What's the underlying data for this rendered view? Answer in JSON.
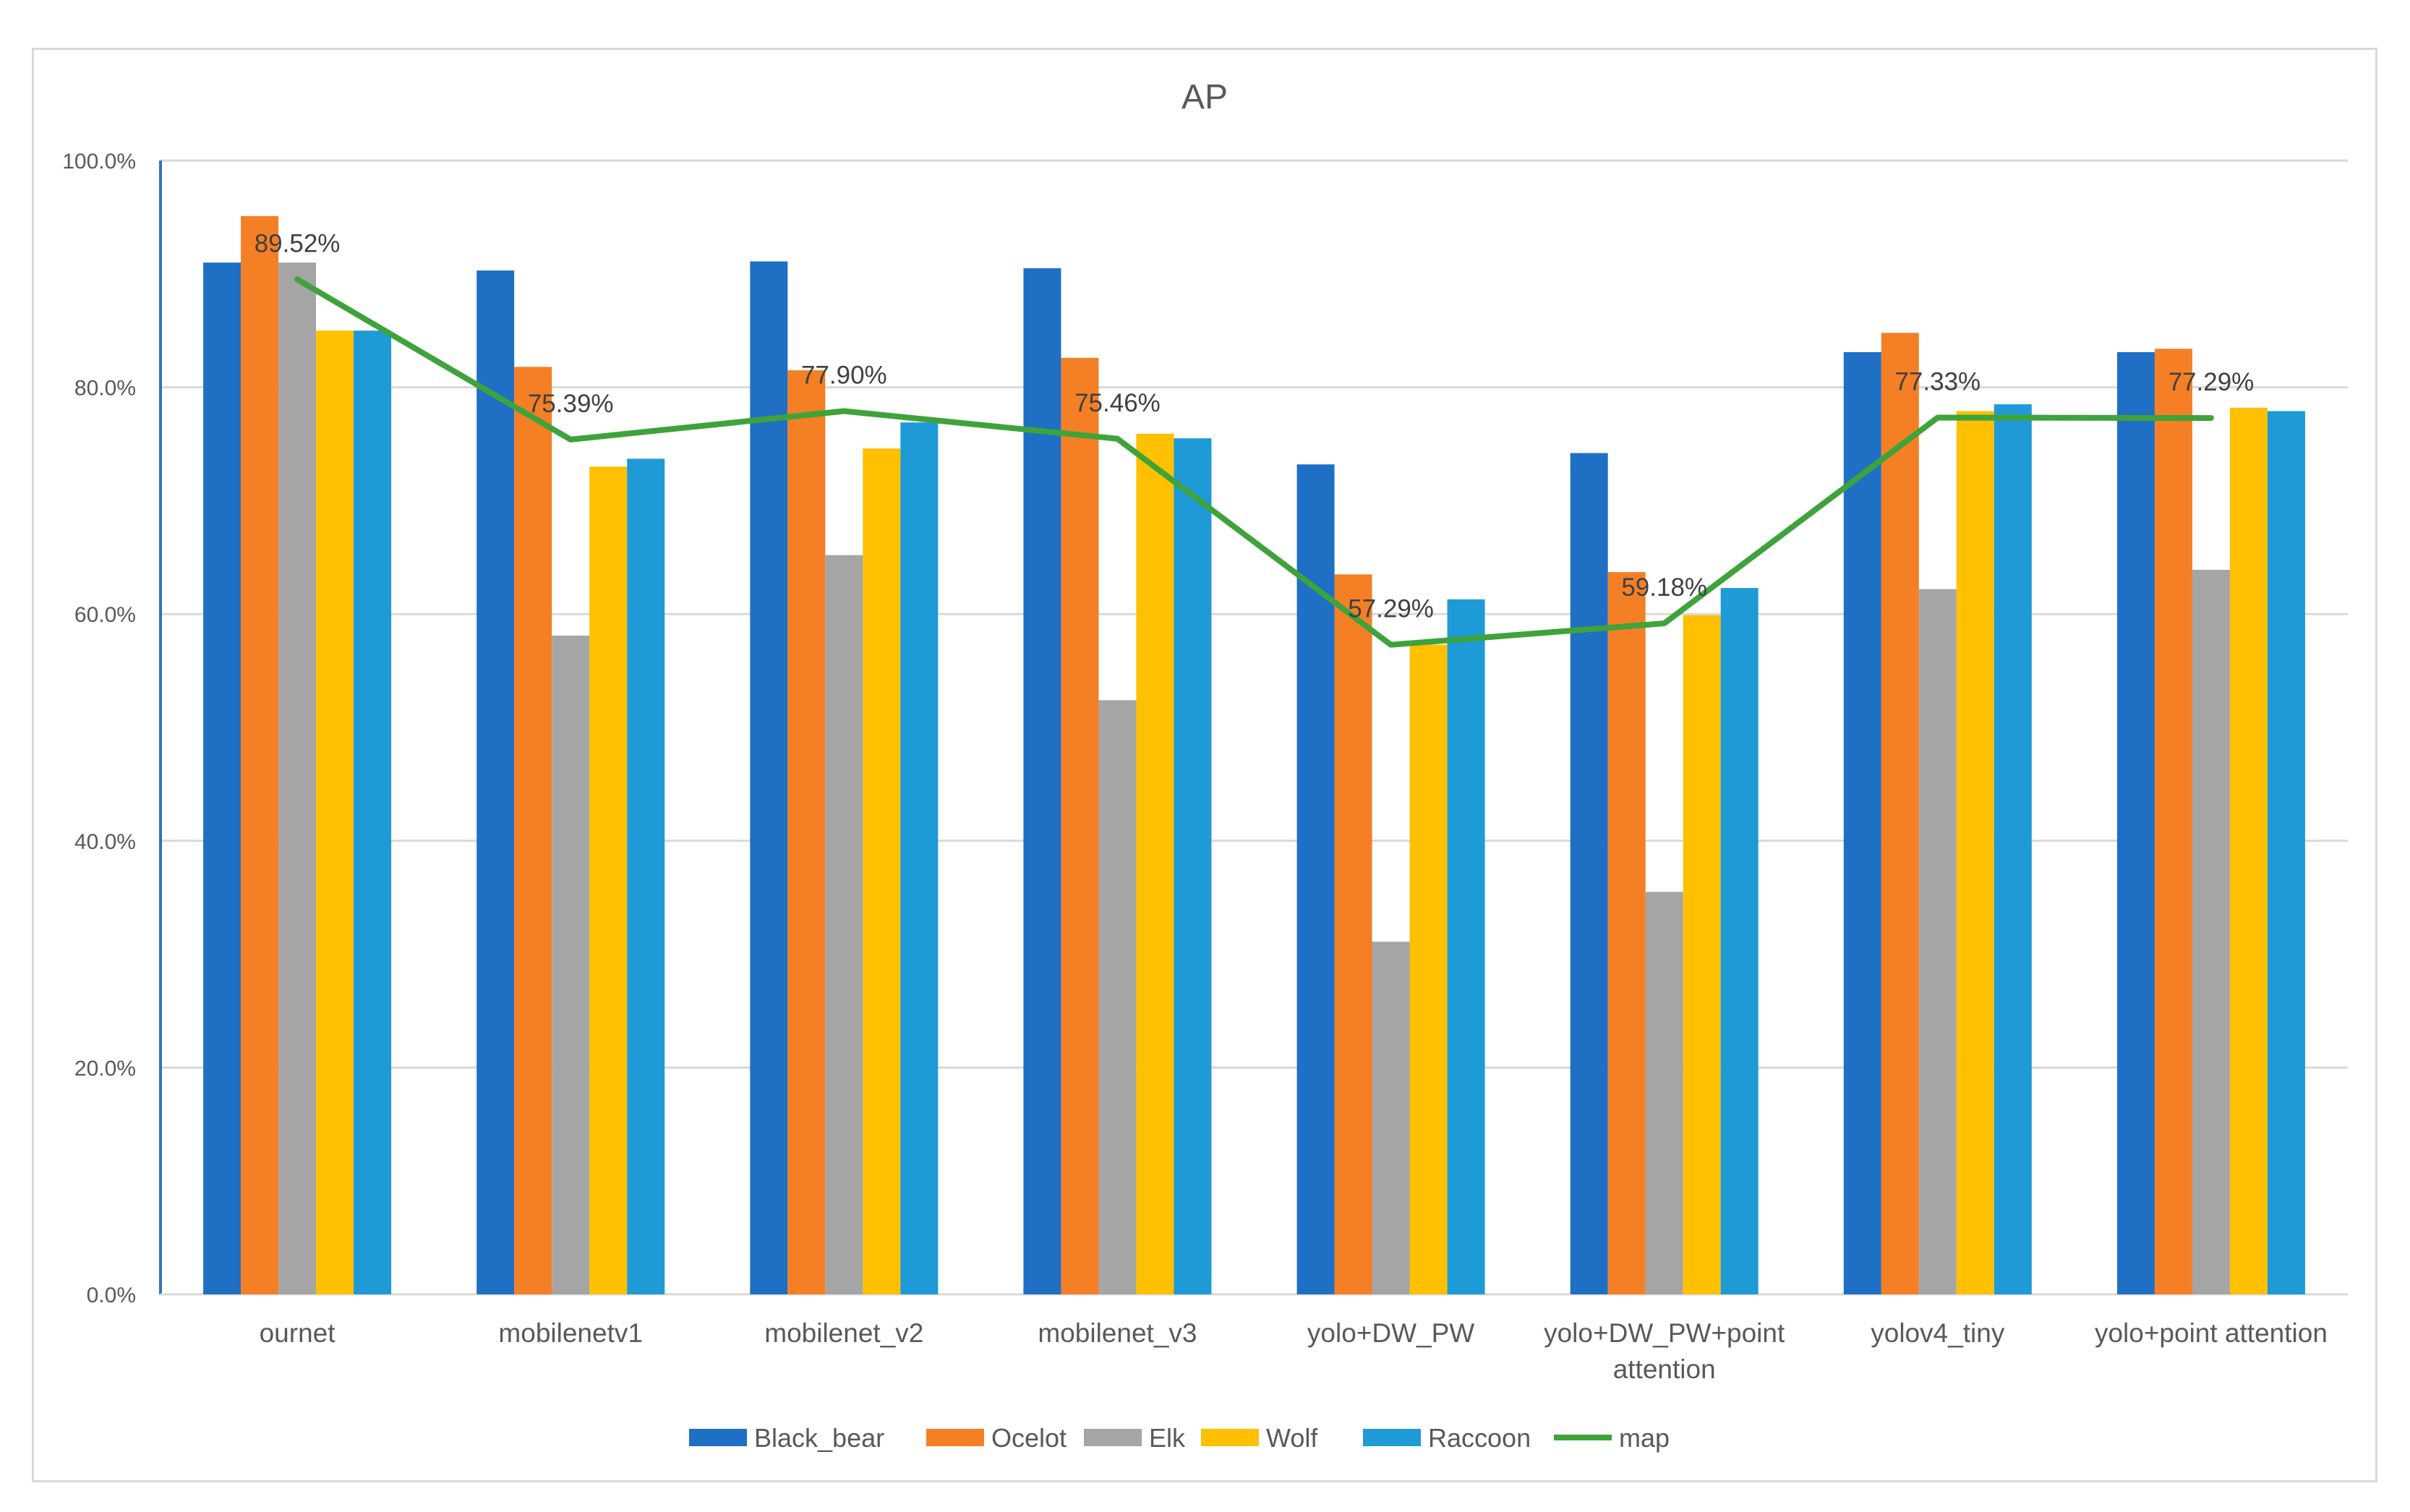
{
  "chart_data": {
    "type": "bar",
    "title": "AP",
    "xlabel": "",
    "ylabel": "",
    "ylim": [
      0,
      100
    ],
    "y_ticks": [
      "0.0%",
      "20.0%",
      "40.0%",
      "60.0%",
      "80.0%",
      "100.0%"
    ],
    "y_tick_values": [
      0,
      20,
      40,
      60,
      80,
      100
    ],
    "categories": [
      [
        "ournet"
      ],
      [
        "mobilenetv1"
      ],
      [
        "mobilenet_v2"
      ],
      [
        "mobilenet_v3"
      ],
      [
        "yolo+DW_PW"
      ],
      [
        "yolo+DW_PW+point",
        "attention"
      ],
      [
        "yolov4_tiny"
      ],
      [
        "yolo+point attention"
      ]
    ],
    "series": [
      {
        "name": "Black_bear",
        "color": "#1f6fc5",
        "values": [
          91.0,
          90.3,
          91.1,
          90.5,
          73.2,
          74.2,
          83.1,
          83.1
        ]
      },
      {
        "name": "Ocelot",
        "color": "#f47f25",
        "values": [
          95.1,
          81.8,
          81.5,
          82.6,
          63.5,
          63.7,
          84.8,
          83.4
        ]
      },
      {
        "name": "Elk",
        "color": "#a5a5a5",
        "values": [
          91.0,
          58.1,
          65.2,
          52.4,
          31.1,
          35.5,
          62.2,
          63.9
        ]
      },
      {
        "name": "Wolf",
        "color": "#ffc000",
        "values": [
          85.0,
          73.0,
          74.6,
          75.9,
          57.3,
          59.9,
          77.9,
          78.2
        ]
      },
      {
        "name": "Raccoon",
        "color": "#1e9ad6",
        "values": [
          85.0,
          73.7,
          76.9,
          75.5,
          61.3,
          62.3,
          78.5,
          77.9
        ]
      }
    ],
    "line_series": {
      "name": "map",
      "color": "#3ea33b",
      "values": [
        89.52,
        75.39,
        77.9,
        75.46,
        57.29,
        59.18,
        77.33,
        77.29
      ],
      "labels": [
        "89.52%",
        "75.39%",
        "77.90%",
        "75.46%",
        "57.29%",
        "59.18%",
        "77.33%",
        "77.29%"
      ]
    },
    "legend_position": "bottom",
    "grid": true
  }
}
